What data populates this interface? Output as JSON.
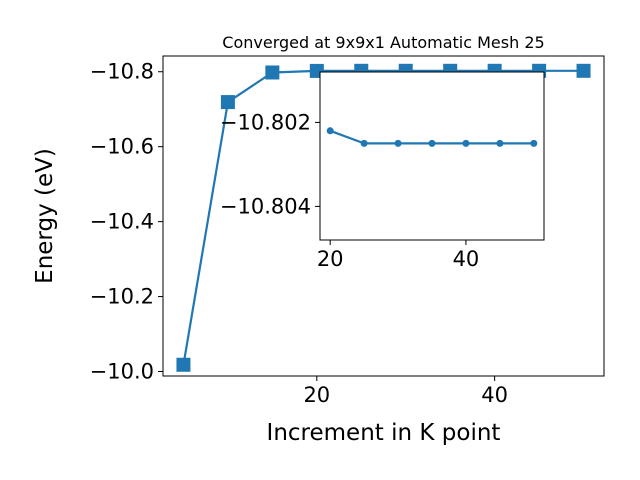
{
  "colors": {
    "series": "#1f77b4",
    "axes": "#000000",
    "background": "#ffffff"
  },
  "chart_data": [
    {
      "type": "line",
      "role": "main",
      "title": "Converged at 9x9x1 Automatic Mesh 25",
      "xlabel": "Increment in K point",
      "ylabel": "Energy (eV)",
      "xlim": [
        2.7,
        52.3
      ],
      "ylim": [
        -10.842,
        -9.988
      ],
      "y_inverted": true,
      "xticks": [
        20,
        40
      ],
      "xtick_labels": [
        "20",
        "40"
      ],
      "yticks": [
        -10.0,
        -10.2,
        -10.4,
        -10.6,
        -10.8
      ],
      "ytick_labels": [
        "−10.0",
        "−10.2",
        "−10.4",
        "−10.6",
        "−10.8"
      ],
      "marker": "square",
      "series": [
        {
          "x": [
            5,
            10,
            15,
            20,
            25,
            30,
            35,
            40,
            45,
            50
          ],
          "y": [
            -10.018,
            -10.719,
            -10.798,
            -10.8022,
            -10.8025,
            -10.8025,
            -10.8025,
            -10.8025,
            -10.8025,
            -10.8025
          ]
        }
      ]
    },
    {
      "type": "line",
      "role": "inset",
      "xlim": [
        18.5,
        51.5
      ],
      "ylim": [
        -10.8008,
        -10.8048
      ],
      "xticks": [
        20,
        40
      ],
      "xtick_labels": [
        "20",
        "40"
      ],
      "yticks": [
        -10.802,
        -10.804
      ],
      "ytick_labels": [
        "−10.802",
        "−10.804"
      ],
      "marker": "circle",
      "series": [
        {
          "x": [
            20,
            25,
            30,
            35,
            40,
            45,
            50
          ],
          "y": [
            -10.8022,
            -10.8025,
            -10.8025,
            -10.8025,
            -10.8025,
            -10.8025,
            -10.8025
          ]
        }
      ]
    }
  ]
}
